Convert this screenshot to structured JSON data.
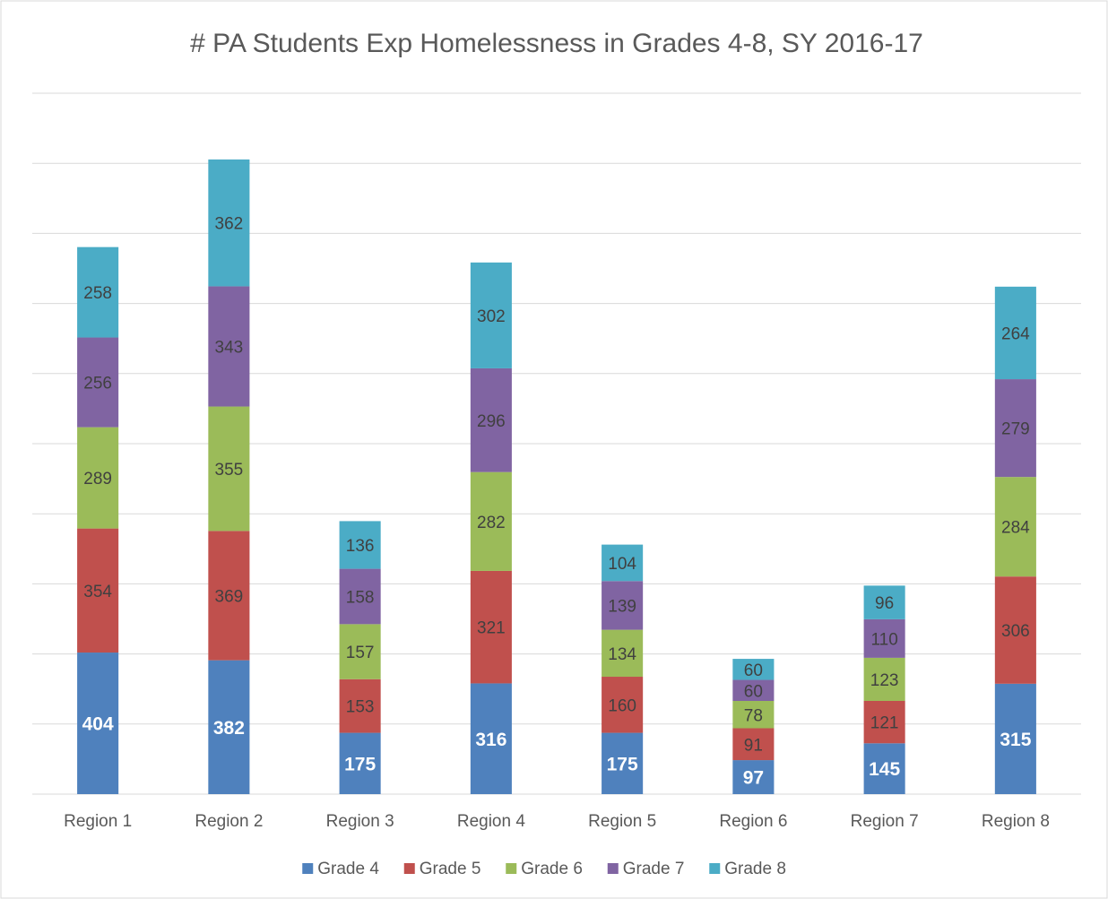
{
  "chart_data": {
    "type": "stacked_bar",
    "title": "# PA Students Exp Homelessness in Grades 4-8, SY 2016-17",
    "categories": [
      "Region 1",
      "Region 2",
      "Region 3",
      "Region 4",
      "Region 5",
      "Region 6",
      "Region 7",
      "Region 8"
    ],
    "series": [
      {
        "name": "Grade 4",
        "color": "#4f81bd",
        "values": [
          404,
          382,
          175,
          316,
          175,
          97,
          145,
          315
        ]
      },
      {
        "name": "Grade 5",
        "color": "#c0504d",
        "values": [
          354,
          369,
          153,
          321,
          160,
          91,
          121,
          306
        ]
      },
      {
        "name": "Grade 6",
        "color": "#9bbb59",
        "values": [
          289,
          355,
          157,
          282,
          134,
          78,
          123,
          284
        ]
      },
      {
        "name": "Grade 7",
        "color": "#8064a2",
        "values": [
          256,
          343,
          158,
          296,
          139,
          60,
          110,
          279
        ]
      },
      {
        "name": "Grade 8",
        "color": "#4bacc6",
        "values": [
          258,
          362,
          136,
          302,
          104,
          60,
          96,
          264
        ]
      }
    ],
    "ylim": [
      0,
      2000
    ],
    "yticks": [
      0,
      200,
      400,
      600,
      800,
      1000,
      1200,
      1400,
      1600,
      1800,
      2000
    ],
    "grid": true,
    "legend": "bottom"
  }
}
